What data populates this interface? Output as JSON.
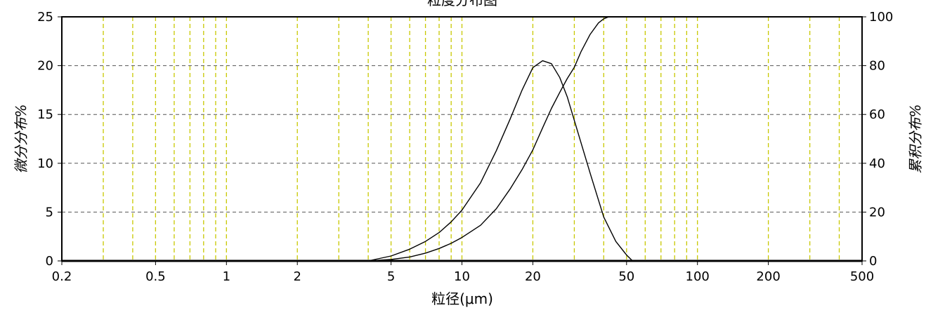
{
  "chart_data": {
    "type": "line",
    "title": "粒度分布图",
    "xlabel": "粒径(μm)",
    "ylabel_left": "微分分布%",
    "ylabel_right": "累积分布%",
    "x_scale": "log",
    "xlim": [
      0.2,
      500
    ],
    "ylim_left": [
      0,
      25
    ],
    "ylim_right": [
      0,
      100
    ],
    "x_ticks": [
      0.2,
      0.5,
      1,
      2,
      5,
      10,
      20,
      50,
      100,
      200,
      500
    ],
    "x_tick_labels": [
      "0.2",
      "0.5",
      "1",
      "2",
      "5",
      "10",
      "20",
      "50",
      "100",
      "200",
      "500"
    ],
    "x_minor_gridlines": [
      0.3,
      0.4,
      0.6,
      0.7,
      0.8,
      0.9,
      3,
      4,
      6,
      7,
      8,
      9,
      30,
      40,
      60,
      70,
      80,
      90,
      300,
      400
    ],
    "y_left_ticks": [
      0,
      5,
      10,
      15,
      20,
      25
    ],
    "y_right_ticks": [
      0,
      20,
      40,
      60,
      80,
      100
    ],
    "grid": true,
    "grid_style": "dashed",
    "colors": {
      "line": "#000000",
      "grid_major": "#555555",
      "grid_minor": "#c8c800"
    },
    "series": [
      {
        "axis": "left",
        "x": [
          4.0,
          5,
          6,
          7,
          8,
          9,
          10,
          12,
          14,
          16,
          18,
          20,
          22,
          24,
          26,
          28,
          30,
          35,
          40,
          45,
          50,
          53
        ],
        "values": [
          0,
          0.5,
          1.2,
          2.0,
          2.9,
          4.0,
          5.2,
          8.0,
          11.3,
          14.5,
          17.5,
          19.8,
          20.5,
          20.2,
          18.8,
          16.8,
          14.4,
          9.0,
          4.5,
          2.0,
          0.6,
          0
        ]
      },
      {
        "axis": "right",
        "x": [
          4.0,
          5,
          6,
          7,
          8,
          9,
          10,
          12,
          14,
          16,
          18,
          20,
          22,
          24,
          26,
          28,
          30,
          32,
          35,
          38,
          40,
          42
        ],
        "values": [
          0,
          0.6,
          1.6,
          3.2,
          5.1,
          7.2,
          9.6,
          14.6,
          21.4,
          29.4,
          37.4,
          45.5,
          54.5,
          62.5,
          69.0,
          74.7,
          79.3,
          85.6,
          92.8,
          97.5,
          99.2,
          100
        ]
      }
    ]
  }
}
